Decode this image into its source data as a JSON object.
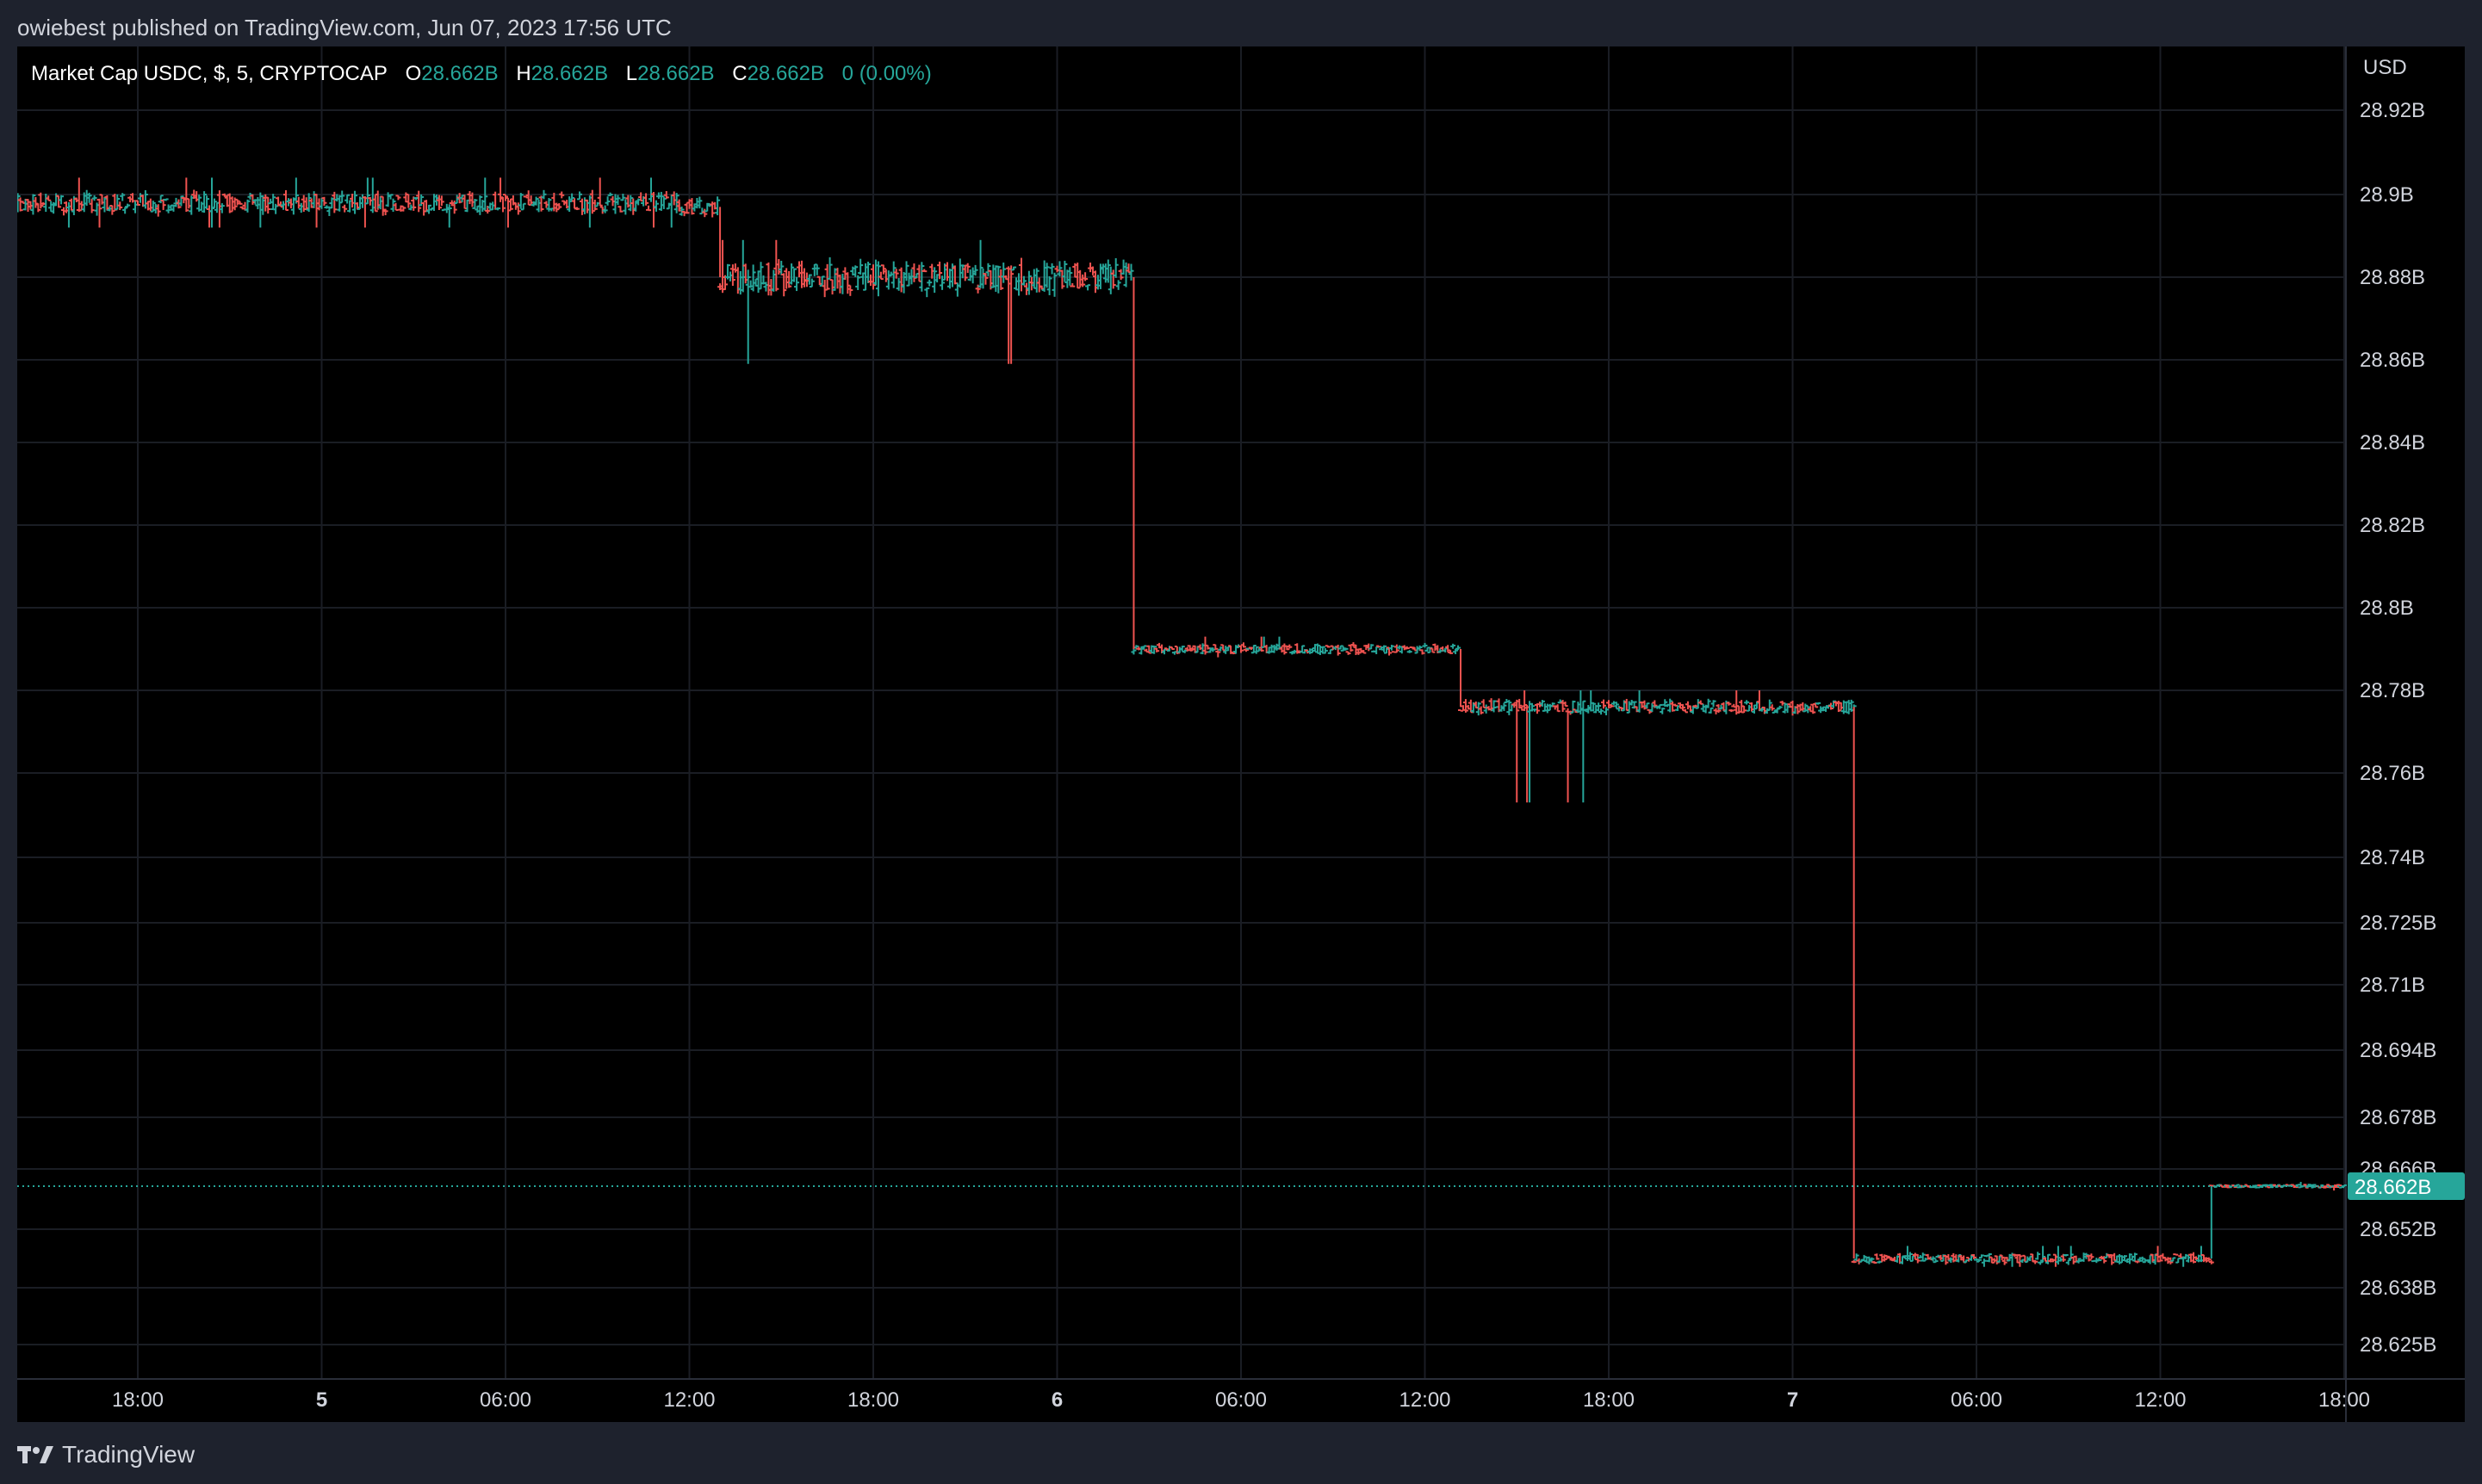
{
  "header": {
    "published_text": "owiebest published on TradingView.com, Jun 07, 2023 17:56 UTC"
  },
  "legend": {
    "symbol": "Market Cap USDC, $, 5, CRYPTOCAP",
    "o_label": "O",
    "o_value": "28.662B",
    "h_label": "H",
    "h_value": "28.662B",
    "l_label": "L",
    "l_value": "28.662B",
    "c_label": "C",
    "c_value": "28.662B",
    "change": "0 (0.00%)"
  },
  "footer": {
    "brand": "TradingView",
    "logo_icon": "tradingview-logo-icon"
  },
  "colors": {
    "background": "#000000",
    "outer": "#1e222d",
    "grid": "#1a1d24",
    "up": "#26a69a",
    "down": "#ef5350",
    "text": "#d1d4dc",
    "last_price": "#26a69a"
  },
  "chart_data": {
    "type": "ohlc",
    "title": "Market Cap USDC, $, 5, CRYPTOCAP",
    "currency_label": "USD",
    "y_tick_labels": [
      "28.92B",
      "28.9B",
      "28.88B",
      "28.86B",
      "28.84B",
      "28.82B",
      "28.8B",
      "28.78B",
      "28.76B",
      "28.74B",
      "28.725B",
      "28.71B",
      "28.694B",
      "28.678B",
      "28.666B",
      "28.652B",
      "28.638B",
      "28.625B"
    ],
    "x_tick_labels": [
      "18:00",
      "5",
      "06:00",
      "12:00",
      "18:00",
      "6",
      "06:00",
      "12:00",
      "18:00",
      "7",
      "06:00",
      "12:00",
      "18:00"
    ],
    "last_price_label": "28.662B",
    "ylim": [
      28.62,
      28.925
    ],
    "grid": true,
    "series": [
      {
        "x_start": "Jun 4 14:00",
        "x_end": "Jun 5 11:40",
        "level": 28.898,
        "low": 28.892,
        "high": 28.904
      },
      {
        "x_start": "Jun 5 11:40",
        "x_end": "Jun 5 13:00",
        "level": 28.897,
        "low": 28.882,
        "high": 28.902
      },
      {
        "x_start": "Jun 5 13:00",
        "x_end": "Jun 6 02:30",
        "level": 28.88,
        "low": 28.859,
        "high": 28.889
      },
      {
        "x_start": "Jun 6 02:30",
        "x_end": "Jun 6 13:10",
        "level": 28.79,
        "low": 28.788,
        "high": 28.793
      },
      {
        "x_start": "Jun 6 13:10",
        "x_end": "Jun 7 02:00",
        "level": 28.776,
        "low": 28.753,
        "high": 28.78
      },
      {
        "x_start": "Jun 7 02:00",
        "x_end": "Jun 7 13:40",
        "level": 28.645,
        "low": 28.643,
        "high": 28.648
      },
      {
        "x_start": "Jun 7 13:40",
        "x_end": "Jun 7 18:00",
        "level": 28.662,
        "low": 28.661,
        "high": 28.663
      }
    ]
  }
}
